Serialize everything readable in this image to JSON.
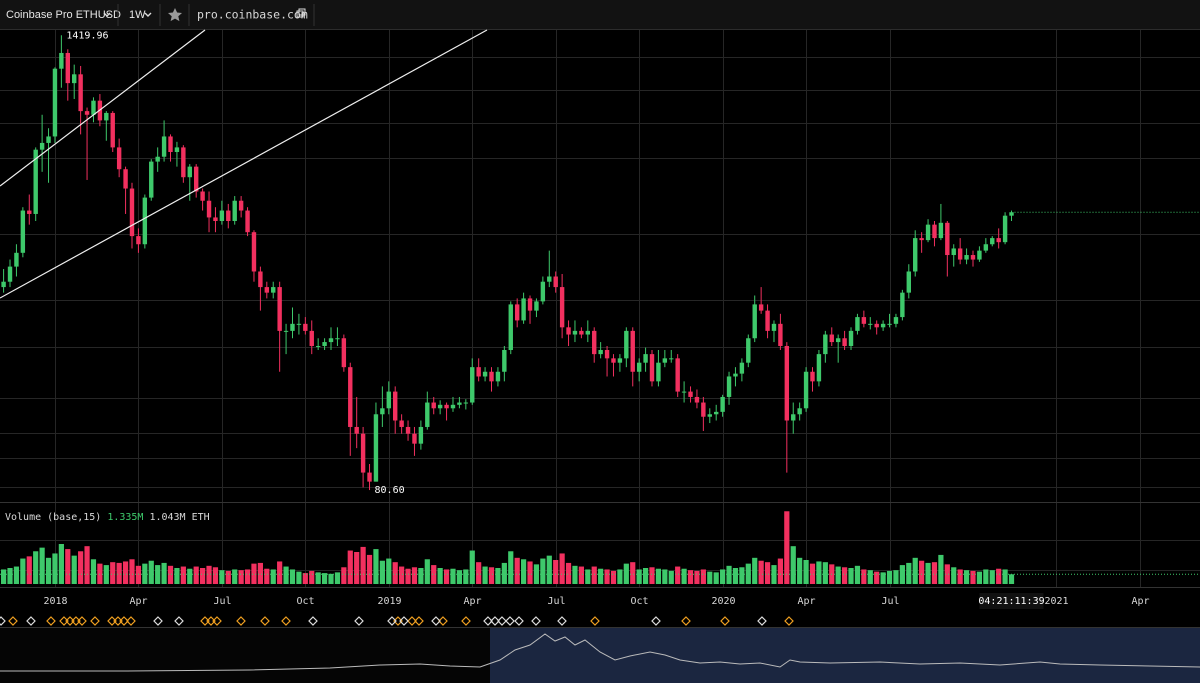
{
  "toolbar": {
    "symbol": "Coinbase Pro ETHUSD",
    "interval": "1W",
    "site": "pro.coinbase.com"
  },
  "chart_data": {
    "type": "candlestick",
    "xlim": [
      -0.56,
      186.36
    ],
    "ylim": [
      75.7,
      1468
    ],
    "log": true,
    "vlim": [
      0,
      11
    ],
    "up_color": "#3ec96b",
    "down_color": "#f2305f",
    "xticks": [
      {
        "value": 8,
        "label": "2018"
      },
      {
        "value": 21,
        "label": "Apr"
      },
      {
        "value": 34,
        "label": "Jul"
      },
      {
        "value": 47,
        "label": "Oct"
      },
      {
        "value": 60,
        "label": "2019"
      },
      {
        "value": 73,
        "label": "Apr"
      },
      {
        "value": 86,
        "label": "Jul"
      },
      {
        "value": 99,
        "label": "Oct"
      },
      {
        "value": 112,
        "label": "2020"
      },
      {
        "value": 125,
        "label": "Apr"
      },
      {
        "value": 138,
        "label": "Jul"
      },
      {
        "value": 164,
        "label": "2021"
      },
      {
        "value": 177,
        "label": "Apr"
      }
    ],
    "max_label": {
      "value": 1419.96,
      "label": "1419.96"
    },
    "min_label": {
      "value": 80.6,
      "label": "80.60"
    },
    "countdown": "04:21:11:39",
    "volume_legend": {
      "title": "Volume (base,15)",
      "last": "1.335M",
      "ma": "1.043M ETH"
    },
    "open": [
      290,
      300,
      330,
      360,
      470,
      460,
      690,
      720,
      750,
      1150,
      1270,
      1050,
      1110,
      880,
      860,
      940,
      830,
      870,
      700,
      610,
      540,
      400,
      380,
      510,
      640,
      660,
      750,
      680,
      700,
      580,
      620,
      530,
      500,
      450,
      440,
      470,
      440,
      500,
      470,
      410,
      320,
      290,
      280,
      290,
      220,
      220,
      230,
      230,
      220,
      200,
      200,
      205,
      210,
      210,
      175,
      120,
      115,
      90,
      85,
      130,
      135,
      150,
      125,
      120,
      115,
      108,
      120,
      140,
      135,
      138,
      135,
      138,
      140,
      140,
      175,
      165,
      170,
      160,
      170,
      195,
      260,
      235,
      270,
      250,
      265,
      300,
      310,
      290,
      225,
      215,
      220,
      215,
      220,
      190,
      195,
      185,
      180,
      185,
      220,
      170,
      180,
      190,
      160,
      180,
      185,
      185,
      150,
      150,
      145,
      140,
      128,
      130,
      132,
      145,
      165,
      168,
      180,
      210,
      260,
      250,
      220,
      230,
      200,
      125,
      130,
      135,
      170,
      160,
      190,
      215,
      205,
      210,
      200,
      220,
      240,
      230,
      230,
      225,
      230,
      230,
      240,
      280,
      320,
      395,
      390,
      430,
      395,
      435,
      355,
      370,
      345,
      355,
      345,
      365,
      380,
      395,
      385,
      455
    ],
    "high": [
      325,
      345,
      380,
      480,
      520,
      700,
      860,
      790,
      1160,
      1419.96,
      1300,
      1180,
      1170,
      900,
      960,
      980,
      880,
      880,
      740,
      620,
      560,
      420,
      520,
      650,
      700,
      830,
      760,
      725,
      710,
      630,
      630,
      540,
      530,
      480,
      500,
      490,
      515,
      515,
      480,
      415,
      330,
      300,
      300,
      300,
      230,
      255,
      245,
      240,
      235,
      210,
      210,
      225,
      225,
      215,
      180,
      145,
      120,
      95,
      140,
      155,
      160,
      155,
      130,
      125,
      120,
      125,
      150,
      145,
      142,
      140,
      145,
      145,
      143,
      185,
      185,
      175,
      175,
      175,
      200,
      265,
      270,
      280,
      275,
      270,
      310,
      365,
      320,
      315,
      235,
      235,
      225,
      235,
      225,
      205,
      200,
      190,
      190,
      225,
      225,
      185,
      198,
      195,
      195,
      195,
      195,
      190,
      160,
      155,
      152,
      145,
      135,
      138,
      147,
      170,
      175,
      185,
      215,
      275,
      290,
      260,
      235,
      245,
      205,
      140,
      140,
      175,
      175,
      195,
      220,
      225,
      215,
      220,
      225,
      245,
      250,
      240,
      235,
      235,
      245,
      245,
      285,
      335,
      415,
      410,
      445,
      440,
      490,
      440,
      380,
      395,
      370,
      365,
      375,
      395,
      400,
      420,
      465,
      470
    ],
    "low": [
      280,
      290,
      310,
      350,
      430,
      440,
      600,
      560,
      720,
      1020,
      940,
      950,
      760,
      570,
      820,
      800,
      730,
      680,
      580,
      460,
      370,
      360,
      370,
      500,
      600,
      640,
      640,
      620,
      560,
      500,
      510,
      470,
      410,
      410,
      430,
      420,
      430,
      450,
      400,
      300,
      250,
      270,
      270,
      170,
      190,
      210,
      215,
      215,
      190,
      195,
      195,
      195,
      200,
      170,
      100,
      105,
      82,
      80.6,
      85,
      120,
      130,
      115,
      115,
      110,
      100,
      104,
      118,
      130,
      130,
      125,
      132,
      135,
      134,
      138,
      160,
      160,
      150,
      155,
      160,
      190,
      225,
      230,
      230,
      240,
      260,
      290,
      280,
      210,
      200,
      205,
      210,
      205,
      180,
      185,
      165,
      165,
      170,
      175,
      155,
      160,
      170,
      155,
      155,
      175,
      180,
      145,
      140,
      140,
      135,
      117,
      123,
      125,
      128,
      138,
      155,
      160,
      175,
      205,
      245,
      210,
      205,
      195,
      90,
      115,
      125,
      132,
      150,
      155,
      180,
      200,
      180,
      195,
      195,
      215,
      225,
      222,
      215,
      220,
      225,
      225,
      235,
      270,
      310,
      360,
      385,
      375,
      390,
      310,
      330,
      335,
      335,
      330,
      340,
      360,
      375,
      370,
      380,
      440
    ],
    "close": [
      300,
      330,
      360,
      470,
      460,
      690,
      720,
      750,
      1150,
      1270,
      1050,
      1110,
      880,
      860,
      940,
      830,
      870,
      700,
      610,
      540,
      400,
      380,
      510,
      640,
      660,
      750,
      680,
      700,
      580,
      620,
      530,
      500,
      450,
      440,
      470,
      440,
      500,
      470,
      410,
      320,
      290,
      280,
      290,
      220,
      220,
      230,
      230,
      220,
      200,
      200,
      205,
      210,
      210,
      175,
      120,
      115,
      90,
      85,
      130,
      135,
      150,
      125,
      120,
      115,
      108,
      120,
      140,
      135,
      138,
      135,
      138,
      140,
      140,
      175,
      165,
      170,
      160,
      170,
      195,
      260,
      235,
      270,
      250,
      265,
      300,
      310,
      290,
      225,
      215,
      220,
      215,
      220,
      190,
      195,
      185,
      180,
      185,
      220,
      170,
      180,
      190,
      160,
      180,
      185,
      185,
      150,
      150,
      145,
      140,
      128,
      130,
      132,
      145,
      165,
      168,
      180,
      210,
      260,
      250,
      220,
      230,
      200,
      125,
      130,
      135,
      170,
      160,
      190,
      215,
      205,
      210,
      200,
      220,
      240,
      230,
      230,
      225,
      230,
      230,
      240,
      280,
      320,
      395,
      390,
      430,
      395,
      435,
      355,
      370,
      345,
      355,
      345,
      365,
      380,
      395,
      385,
      455,
      465
    ],
    "volume": [
      2.0,
      2.2,
      2.4,
      3.5,
      3.8,
      4.5,
      5.0,
      3.6,
      4.2,
      5.5,
      4.8,
      3.9,
      4.5,
      5.2,
      3.4,
      2.8,
      2.6,
      3.0,
      2.9,
      3.1,
      3.4,
      2.5,
      2.8,
      3.2,
      2.6,
      2.9,
      2.5,
      2.2,
      2.4,
      2.1,
      2.4,
      2.2,
      2.5,
      2.3,
      1.9,
      1.8,
      2.0,
      1.9,
      2.0,
      2.8,
      2.9,
      2.1,
      2.0,
      3.1,
      2.4,
      2.0,
      1.7,
      1.5,
      1.8,
      1.6,
      1.5,
      1.4,
      1.6,
      2.3,
      4.6,
      4.4,
      5.1,
      4.0,
      4.8,
      3.2,
      3.5,
      3.0,
      2.4,
      2.1,
      2.3,
      2.2,
      3.4,
      2.6,
      2.2,
      2.0,
      2.1,
      1.9,
      2.0,
      4.6,
      3.0,
      2.4,
      2.3,
      2.2,
      2.9,
      4.5,
      3.6,
      3.4,
      3.1,
      2.7,
      3.5,
      3.9,
      3.3,
      4.2,
      2.9,
      2.5,
      2.4,
      2.0,
      2.4,
      2.1,
      2.0,
      1.8,
      2.0,
      2.8,
      3.0,
      2.0,
      2.2,
      2.3,
      2.1,
      2.0,
      1.8,
      2.4,
      2.1,
      1.9,
      1.8,
      2.0,
      1.7,
      1.6,
      2.0,
      2.5,
      2.2,
      2.3,
      2.8,
      3.6,
      3.2,
      3.0,
      2.6,
      3.5,
      10.0,
      5.2,
      3.6,
      3.3,
      2.8,
      3.1,
      3.0,
      2.7,
      2.4,
      2.3,
      2.2,
      2.5,
      2.0,
      1.9,
      1.7,
      1.6,
      1.8,
      1.9,
      2.6,
      2.9,
      3.6,
      3.2,
      2.9,
      3.0,
      4.0,
      2.7,
      2.3,
      2.0,
      1.9,
      1.8,
      1.7,
      2.0,
      1.9,
      2.1,
      2.0,
      1.335
    ]
  }
}
